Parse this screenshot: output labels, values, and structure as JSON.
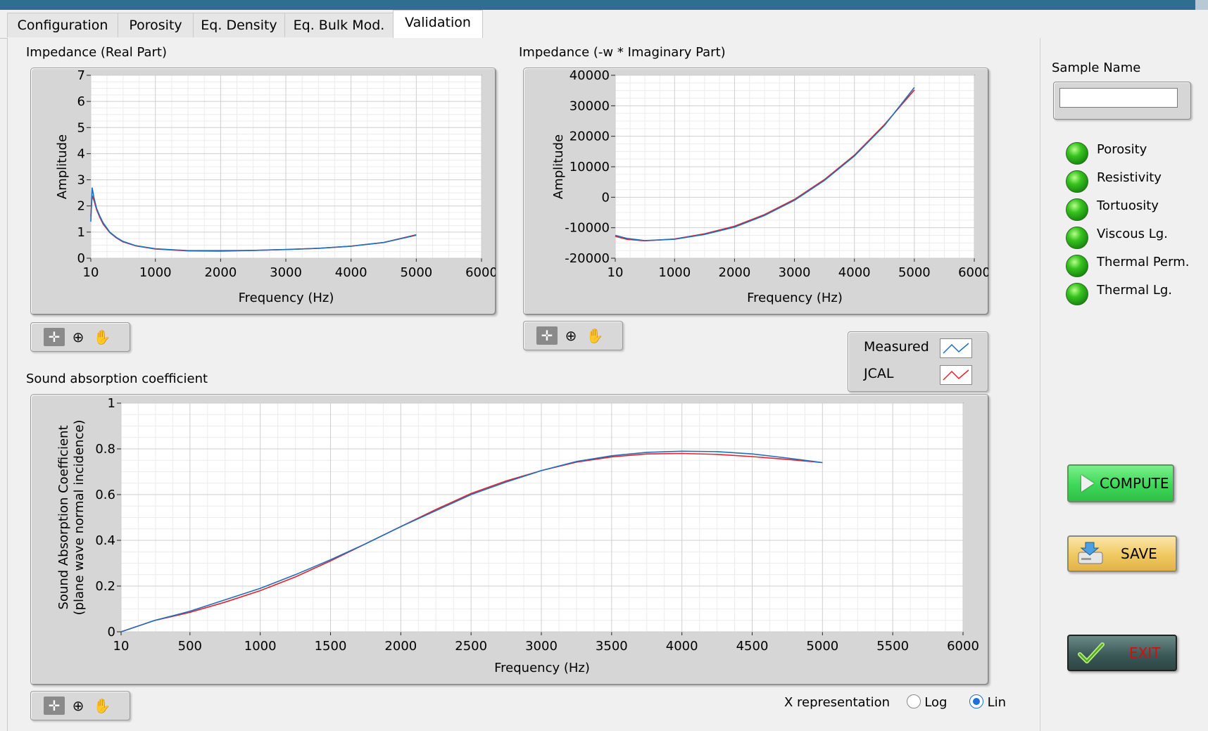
{
  "tabs": [
    {
      "label": "Configuration",
      "active": false
    },
    {
      "label": "Porosity",
      "active": false
    },
    {
      "label": "Eq. Density",
      "active": false
    },
    {
      "label": "Eq. Bulk Mod.",
      "active": false
    },
    {
      "label": "Validation",
      "active": true
    }
  ],
  "colors": {
    "measured": "#1f6fbf",
    "jcal": "#e8202a",
    "compute_green": "#3ee05a",
    "save_gold": "#f0c860",
    "exit_dark": "#3c5a58",
    "exit_text": "#d01010"
  },
  "chart_data": [
    {
      "id": "impedance-real",
      "type": "line",
      "title": "Impedance (Real Part)",
      "xlabel": "Frequency (Hz)",
      "ylabel": "Amplitude",
      "xlim": [
        10,
        6000
      ],
      "ylim": [
        0,
        7
      ],
      "xticks": [
        "10",
        "1000",
        "2000",
        "3000",
        "4000",
        "5000",
        "6000"
      ],
      "yticks": [
        "0",
        "1",
        "2",
        "3",
        "4",
        "5",
        "6",
        "7"
      ],
      "grid": true,
      "series": [
        {
          "name": "Measured",
          "x": [
            10,
            30,
            60,
            100,
            150,
            200,
            300,
            400,
            500,
            700,
            1000,
            1500,
            2000,
            2500,
            3000,
            3500,
            4000,
            4500,
            5000
          ],
          "y": [
            1.4,
            2.7,
            2.3,
            1.9,
            1.6,
            1.35,
            1.0,
            0.8,
            0.65,
            0.48,
            0.36,
            0.29,
            0.29,
            0.3,
            0.33,
            0.38,
            0.46,
            0.6,
            0.88
          ]
        },
        {
          "name": "JCAL",
          "x": [
            10,
            30,
            60,
            100,
            150,
            200,
            300,
            400,
            500,
            700,
            1000,
            1500,
            2000,
            2500,
            3000,
            3500,
            4000,
            4500,
            5000
          ],
          "y": [
            1.6,
            2.4,
            2.2,
            1.85,
            1.55,
            1.3,
            0.98,
            0.78,
            0.63,
            0.47,
            0.35,
            0.28,
            0.27,
            0.3,
            0.33,
            0.38,
            0.46,
            0.6,
            0.9
          ]
        }
      ]
    },
    {
      "id": "impedance-imag",
      "type": "line",
      "title": "Impedance (-w * Imaginary Part)",
      "xlabel": "Frequency (Hz)",
      "ylabel": "Amplitude",
      "xlim": [
        10,
        6000
      ],
      "ylim": [
        -20000,
        40000
      ],
      "xticks": [
        "10",
        "1000",
        "2000",
        "3000",
        "4000",
        "5000",
        "6000"
      ],
      "yticks": [
        "-20000",
        "-10000",
        "0",
        "10000",
        "20000",
        "30000",
        "40000"
      ],
      "grid": true,
      "series": [
        {
          "name": "Measured",
          "x": [
            10,
            200,
            500,
            1000,
            1500,
            2000,
            2500,
            3000,
            3500,
            4000,
            4500,
            5000
          ],
          "y": [
            -12500,
            -13500,
            -14200,
            -13800,
            -12200,
            -9800,
            -6000,
            -1000,
            5500,
            13500,
            23500,
            36000
          ]
        },
        {
          "name": "JCAL",
          "x": [
            10,
            200,
            500,
            1000,
            1500,
            2000,
            2500,
            3000,
            3500,
            4000,
            4500,
            5000
          ],
          "y": [
            -12800,
            -13800,
            -14300,
            -13700,
            -12000,
            -9500,
            -5700,
            -700,
            5800,
            13800,
            23800,
            35200
          ]
        }
      ]
    },
    {
      "id": "sound-absorption",
      "type": "line",
      "title": "Sound absorption coefficient",
      "xlabel": "Frequency (Hz)",
      "ylabel": "Sound Absorption Coefficient",
      "ylabel2": "(plane wave normal incidence)",
      "xlim": [
        10,
        6000
      ],
      "ylim": [
        0,
        1
      ],
      "xticks": [
        "10",
        "500",
        "1000",
        "1500",
        "2000",
        "2500",
        "3000",
        "3500",
        "4000",
        "4500",
        "5000",
        "5500",
        "6000"
      ],
      "yticks": [
        "0",
        "0.2",
        "0.4",
        "0.6",
        "0.8",
        "1"
      ],
      "grid": true,
      "series": [
        {
          "name": "Measured",
          "x": [
            10,
            250,
            500,
            750,
            1000,
            1250,
            1500,
            1750,
            2000,
            2250,
            2500,
            2750,
            3000,
            3250,
            3500,
            3750,
            4000,
            4250,
            4500,
            4750,
            5000
          ],
          "y": [
            0.0,
            0.05,
            0.09,
            0.14,
            0.19,
            0.25,
            0.315,
            0.385,
            0.46,
            0.53,
            0.6,
            0.655,
            0.705,
            0.745,
            0.77,
            0.785,
            0.79,
            0.788,
            0.778,
            0.76,
            0.74
          ]
        },
        {
          "name": "JCAL",
          "x": [
            10,
            250,
            500,
            750,
            1000,
            1250,
            1500,
            1750,
            2000,
            2250,
            2500,
            2750,
            3000,
            3250,
            3500,
            3750,
            4000,
            4250,
            4500,
            4750,
            5000
          ],
          "y": [
            0.0,
            0.05,
            0.085,
            0.13,
            0.18,
            0.24,
            0.31,
            0.385,
            0.46,
            0.535,
            0.605,
            0.66,
            0.705,
            0.742,
            0.765,
            0.778,
            0.78,
            0.776,
            0.766,
            0.754,
            0.74
          ]
        }
      ]
    }
  ],
  "legend": {
    "items": [
      {
        "label": "Measured"
      },
      {
        "label": "JCAL"
      }
    ]
  },
  "palettes": [
    "crosshair-icon",
    "zoom-icon",
    "pan-hand-icon"
  ],
  "sample": {
    "label": "Sample Name",
    "value": ""
  },
  "indicators": [
    {
      "label": "Porosity",
      "state": "on"
    },
    {
      "label": "Resistivity",
      "state": "on"
    },
    {
      "label": "Tortuosity",
      "state": "on"
    },
    {
      "label": "Viscous Lg.",
      "state": "on"
    },
    {
      "label": "Thermal Perm.",
      "state": "on"
    },
    {
      "label": "Thermal Lg.",
      "state": "on"
    }
  ],
  "buttons": {
    "compute": "COMPUTE",
    "save": "SAVE",
    "exit": "EXIT"
  },
  "x_representation": {
    "label": "X representation",
    "options": [
      "Log",
      "Lin"
    ],
    "selected": "Lin"
  }
}
